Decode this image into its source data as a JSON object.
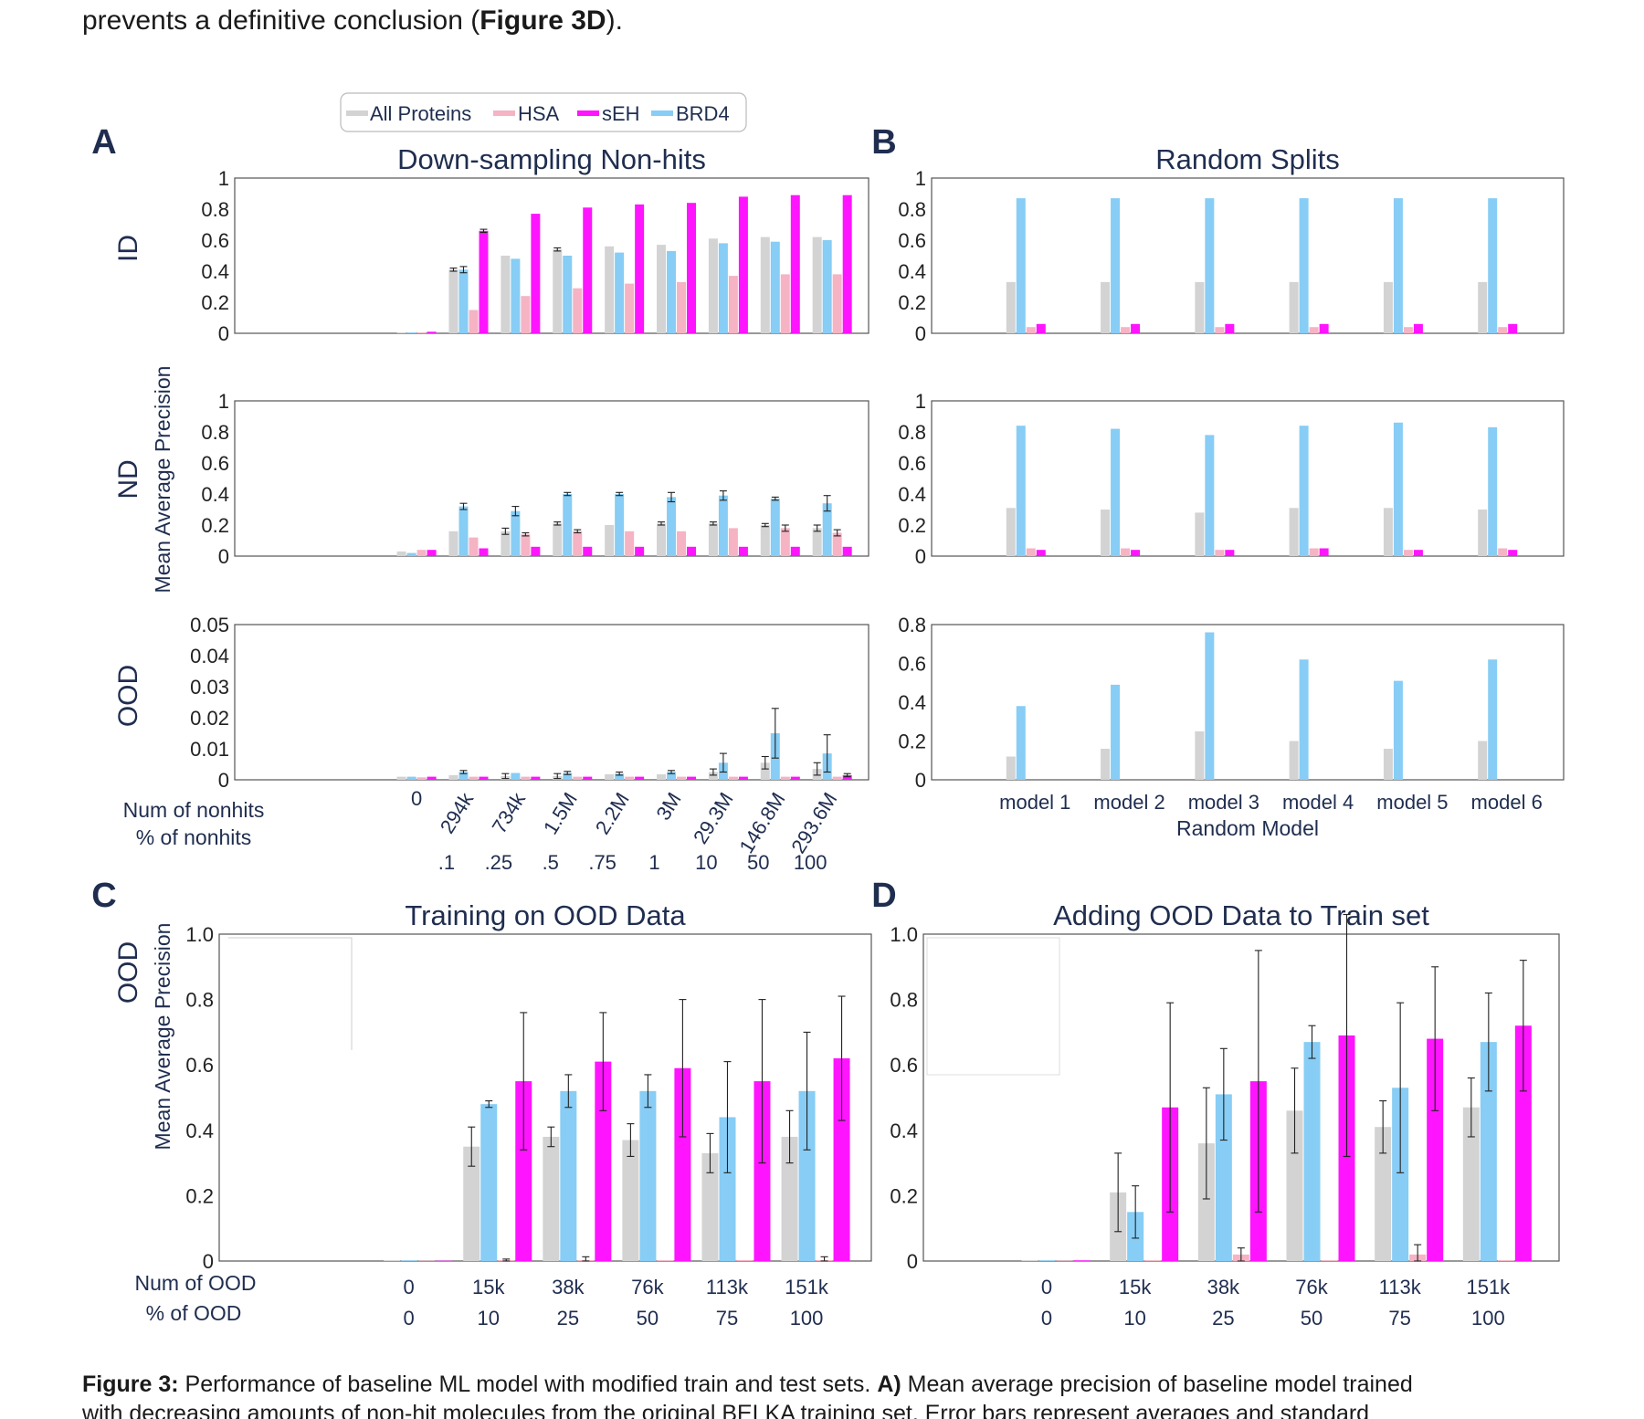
{
  "intro": {
    "prefix": "prevents a definitive conclusion (",
    "bold": "Figure 3D",
    "suffix": ")."
  },
  "legend": {
    "items": [
      {
        "label": "All Proteins",
        "color": "#d3d3d3"
      },
      {
        "label": "HSA",
        "color": "#f5b3c4"
      },
      {
        "label": "sEH",
        "color": "#ff14ff"
      },
      {
        "label": "BRD4",
        "color": "#87cdf5"
      }
    ]
  },
  "panel_letters": [
    "A",
    "B",
    "C",
    "D"
  ],
  "row_labels": [
    "ID",
    "ND",
    "OOD"
  ],
  "ylabel": "Mean Average Precision",
  "ab_x": {
    "label1": "Num of nonhits",
    "label2": "% of nonhits",
    "nonhits": [
      "0",
      "294k",
      "734k",
      "1.5M",
      "2.2M",
      "3M",
      "29.3M",
      "146.8M",
      "293.6M"
    ],
    "pct": [
      "",
      ".1",
      ".25",
      ".5",
      ".75",
      "1",
      "10",
      "50",
      "100"
    ],
    "random_xlabel": "Random Model"
  },
  "cd_x": {
    "label1": "Num of OOD",
    "label2": "% of OOD",
    "num": [
      "0",
      "15k",
      "38k",
      "76k",
      "113k",
      "151k"
    ],
    "pct": [
      "0",
      "10",
      "25",
      "50",
      "75",
      "100"
    ]
  },
  "caption": {
    "line1_bold": "Figure 3:",
    "line1_text": " Performance of baseline ML model with modified train and test sets. ",
    "line1_bold2": "A)",
    "line1_text2": " Mean average precision of baseline model trained",
    "line2": "with decreasing amounts of non-hit molecules from the original BELKA training set. Error bars represent averages and standard"
  },
  "chart_data": [
    {
      "id": "A-ID",
      "type": "bar",
      "title": "Down-sampling Non-hits",
      "ylabel": "ID",
      "ylim": [
        0,
        1
      ],
      "yticks": [
        "0",
        "0.2",
        "0.4",
        "0.6",
        "0.8",
        "1"
      ],
      "categories": [
        "0",
        "294k",
        "734k",
        "1.5M",
        "2.2M",
        "3M",
        "29.3M",
        "146.8M",
        "293.6M"
      ],
      "series": [
        {
          "name": "All Proteins",
          "values": [
            0.005,
            0.41,
            0.5,
            0.54,
            0.56,
            0.57,
            0.61,
            0.62,
            0.62
          ],
          "err": [
            0,
            0.01,
            0,
            0.01,
            0,
            0,
            0,
            0,
            0
          ]
        },
        {
          "name": "BRD4",
          "values": [
            0.005,
            0.41,
            0.48,
            0.5,
            0.52,
            0.53,
            0.58,
            0.59,
            0.6
          ],
          "err": [
            0,
            0.02,
            0,
            0,
            0,
            0,
            0,
            0,
            0
          ]
        },
        {
          "name": "HSA",
          "values": [
            0.005,
            0.15,
            0.24,
            0.29,
            0.32,
            0.33,
            0.37,
            0.38,
            0.38
          ],
          "err": [
            0,
            0,
            0,
            0,
            0,
            0,
            0,
            0,
            0
          ]
        },
        {
          "name": "sEH",
          "values": [
            0.01,
            0.66,
            0.77,
            0.81,
            0.83,
            0.84,
            0.88,
            0.89,
            0.89
          ],
          "err": [
            0,
            0.01,
            0,
            0,
            0,
            0,
            0,
            0,
            0
          ]
        }
      ]
    },
    {
      "id": "A-ND",
      "type": "bar",
      "title": "",
      "ylabel": "ND",
      "ylim": [
        0,
        1
      ],
      "yticks": [
        "0",
        "0.2",
        "0.4",
        "0.6",
        "0.8",
        "1"
      ],
      "categories": [
        "0",
        "294k",
        "734k",
        "1.5M",
        "2.2M",
        "3M",
        "29.3M",
        "146.8M",
        "293.6M"
      ],
      "series": [
        {
          "name": "All Proteins",
          "values": [
            0.03,
            0.16,
            0.16,
            0.21,
            0.2,
            0.21,
            0.21,
            0.2,
            0.18
          ],
          "err": [
            0,
            0,
            0.02,
            0.01,
            0,
            0.01,
            0.01,
            0.01,
            0.02
          ]
        },
        {
          "name": "BRD4",
          "values": [
            0.02,
            0.32,
            0.29,
            0.4,
            0.4,
            0.38,
            0.39,
            0.37,
            0.34
          ],
          "err": [
            0,
            0.02,
            0.03,
            0.01,
            0.01,
            0.03,
            0.03,
            0.01,
            0.05
          ]
        },
        {
          "name": "HSA",
          "values": [
            0.04,
            0.12,
            0.14,
            0.16,
            0.16,
            0.16,
            0.18,
            0.18,
            0.15
          ],
          "err": [
            0,
            0,
            0.01,
            0.01,
            0,
            0,
            0,
            0.02,
            0.02
          ]
        },
        {
          "name": "sEH",
          "values": [
            0.04,
            0.05,
            0.06,
            0.06,
            0.06,
            0.06,
            0.06,
            0.06,
            0.06
          ],
          "err": [
            0,
            0,
            0,
            0,
            0,
            0,
            0,
            0,
            0
          ]
        }
      ]
    },
    {
      "id": "A-OOD",
      "type": "bar",
      "title": "",
      "ylabel": "OOD",
      "ylim": [
        0,
        0.05
      ],
      "yticks": [
        "0",
        "0.01",
        "0.02",
        "0.03",
        "0.04",
        "0.05"
      ],
      "categories": [
        "0",
        "294k",
        "734k",
        "1.5M",
        "2.2M",
        "3M",
        "29.3M",
        "146.8M",
        "293.6M"
      ],
      "series": [
        {
          "name": "All Proteins",
          "values": [
            0.001,
            0.0015,
            0.0012,
            0.0012,
            0.0018,
            0.0018,
            0.0025,
            0.0055,
            0.0035
          ],
          "err": [
            0,
            0,
            0.0008,
            0.0008,
            0,
            0,
            0.001,
            0.002,
            0.002
          ]
        },
        {
          "name": "BRD4",
          "values": [
            0.001,
            0.0025,
            0.0022,
            0.0022,
            0.002,
            0.0025,
            0.0055,
            0.015,
            0.0085
          ],
          "err": [
            0,
            0.0005,
            0,
            0.0005,
            0.0005,
            0.0005,
            0.003,
            0.008,
            0.006
          ]
        },
        {
          "name": "HSA",
          "values": [
            0.0008,
            0.001,
            0.001,
            0.001,
            0.001,
            0.001,
            0.001,
            0.001,
            0.001
          ],
          "err": [
            0,
            0,
            0,
            0,
            0,
            0,
            0,
            0,
            0
          ]
        },
        {
          "name": "sEH",
          "values": [
            0.001,
            0.001,
            0.001,
            0.001,
            0.001,
            0.001,
            0.001,
            0.001,
            0.0015
          ],
          "err": [
            0,
            0,
            0,
            0,
            0,
            0,
            0,
            0,
            0.0005
          ]
        }
      ]
    },
    {
      "id": "B-ID",
      "type": "bar",
      "title": "Random Splits",
      "ylim": [
        0,
        1
      ],
      "yticks": [
        "0",
        "0.2",
        "0.4",
        "0.6",
        "0.8",
        "1"
      ],
      "categories": [
        "model 1",
        "model 2",
        "model 3",
        "model 4",
        "model 5",
        "model 6"
      ],
      "series": [
        {
          "name": "All Proteins",
          "values": [
            0.33,
            0.33,
            0.33,
            0.33,
            0.33,
            0.33
          ]
        },
        {
          "name": "BRD4",
          "values": [
            0.87,
            0.87,
            0.87,
            0.87,
            0.87,
            0.87
          ]
        },
        {
          "name": "HSA",
          "values": [
            0.04,
            0.04,
            0.04,
            0.04,
            0.04,
            0.04
          ]
        },
        {
          "name": "sEH",
          "values": [
            0.06,
            0.06,
            0.06,
            0.06,
            0.06,
            0.06
          ]
        }
      ]
    },
    {
      "id": "B-ND",
      "type": "bar",
      "title": "",
      "ylim": [
        0,
        1
      ],
      "yticks": [
        "0",
        "0.2",
        "0.4",
        "0.6",
        "0.8",
        "1"
      ],
      "categories": [
        "model 1",
        "model 2",
        "model 3",
        "model 4",
        "model 5",
        "model 6"
      ],
      "series": [
        {
          "name": "All Proteins",
          "values": [
            0.31,
            0.3,
            0.28,
            0.31,
            0.31,
            0.3
          ]
        },
        {
          "name": "BRD4",
          "values": [
            0.84,
            0.82,
            0.78,
            0.84,
            0.86,
            0.83
          ]
        },
        {
          "name": "HSA",
          "values": [
            0.05,
            0.05,
            0.04,
            0.05,
            0.04,
            0.05
          ]
        },
        {
          "name": "sEH",
          "values": [
            0.04,
            0.04,
            0.04,
            0.05,
            0.04,
            0.04
          ]
        }
      ]
    },
    {
      "id": "B-OOD",
      "type": "bar",
      "title": "",
      "xlabel": "Random Model",
      "ylim": [
        0,
        0.8
      ],
      "yticks": [
        "0",
        "0.2",
        "0.4",
        "0.6",
        "0.8"
      ],
      "categories": [
        "model 1",
        "model 2",
        "model 3",
        "model 4",
        "model 5",
        "model 6"
      ],
      "series": [
        {
          "name": "All Proteins",
          "values": [
            0.12,
            0.16,
            0.25,
            0.2,
            0.16,
            0.2
          ]
        },
        {
          "name": "BRD4",
          "values": [
            0.38,
            0.49,
            0.76,
            0.62,
            0.51,
            0.62
          ]
        },
        {
          "name": "HSA",
          "values": [
            0,
            0,
            0,
            0,
            0,
            0
          ]
        },
        {
          "name": "sEH",
          "values": [
            0,
            0,
            0,
            0,
            0,
            0
          ]
        }
      ]
    },
    {
      "id": "C",
      "type": "bar",
      "title": "Training on OOD Data",
      "ylabel": "OOD",
      "ylim": [
        0,
        1
      ],
      "yticks": [
        "0",
        "0.2",
        "0.4",
        "0.6",
        "0.8",
        "1.0"
      ],
      "categories": [
        "0",
        "15k",
        "38k",
        "76k",
        "113k",
        "151k"
      ],
      "series": [
        {
          "name": "All Proteins",
          "values": [
            0.002,
            0.35,
            0.38,
            0.37,
            0.33,
            0.38
          ],
          "err": [
            0,
            0.06,
            0.03,
            0.05,
            0.06,
            0.08
          ]
        },
        {
          "name": "BRD4",
          "values": [
            0.002,
            0.48,
            0.52,
            0.52,
            0.44,
            0.52
          ],
          "err": [
            0,
            0.01,
            0.05,
            0.05,
            0.17,
            0.18
          ]
        },
        {
          "name": "HSA",
          "values": [
            0.001,
            0.003,
            0.003,
            0.002,
            0.003,
            0.003
          ],
          "err": [
            0,
            0.003,
            0.01,
            0,
            0,
            0.01
          ]
        },
        {
          "name": "sEH",
          "values": [
            0.001,
            0.55,
            0.61,
            0.59,
            0.55,
            0.62
          ],
          "err": [
            0,
            0.21,
            0.15,
            0.21,
            0.25,
            0.19
          ]
        }
      ]
    },
    {
      "id": "D",
      "type": "bar",
      "title": "Adding OOD Data to Train set",
      "ylim": [
        0,
        1
      ],
      "yticks": [
        "0",
        "0.2",
        "0.4",
        "0.6",
        "0.8",
        "1.0"
      ],
      "categories": [
        "0",
        "15k",
        "38k",
        "76k",
        "113k",
        "151k"
      ],
      "series": [
        {
          "name": "All Proteins",
          "values": [
            0.002,
            0.21,
            0.36,
            0.46,
            0.41,
            0.47
          ],
          "err": [
            0,
            0.12,
            0.17,
            0.13,
            0.08,
            0.09
          ]
        },
        {
          "name": "BRD4",
          "values": [
            0.002,
            0.15,
            0.51,
            0.67,
            0.53,
            0.67
          ],
          "err": [
            0,
            0.08,
            0.14,
            0.05,
            0.26,
            0.15
          ]
        },
        {
          "name": "HSA",
          "values": [
            0.001,
            0.002,
            0.02,
            0.002,
            0.02,
            0.002
          ],
          "err": [
            0,
            0,
            0.02,
            0,
            0.03,
            0
          ]
        },
        {
          "name": "sEH",
          "values": [
            0.002,
            0.47,
            0.55,
            0.69,
            0.68,
            0.72
          ],
          "err": [
            0,
            0.32,
            0.4,
            0.37,
            0.22,
            0.2
          ]
        }
      ]
    }
  ]
}
